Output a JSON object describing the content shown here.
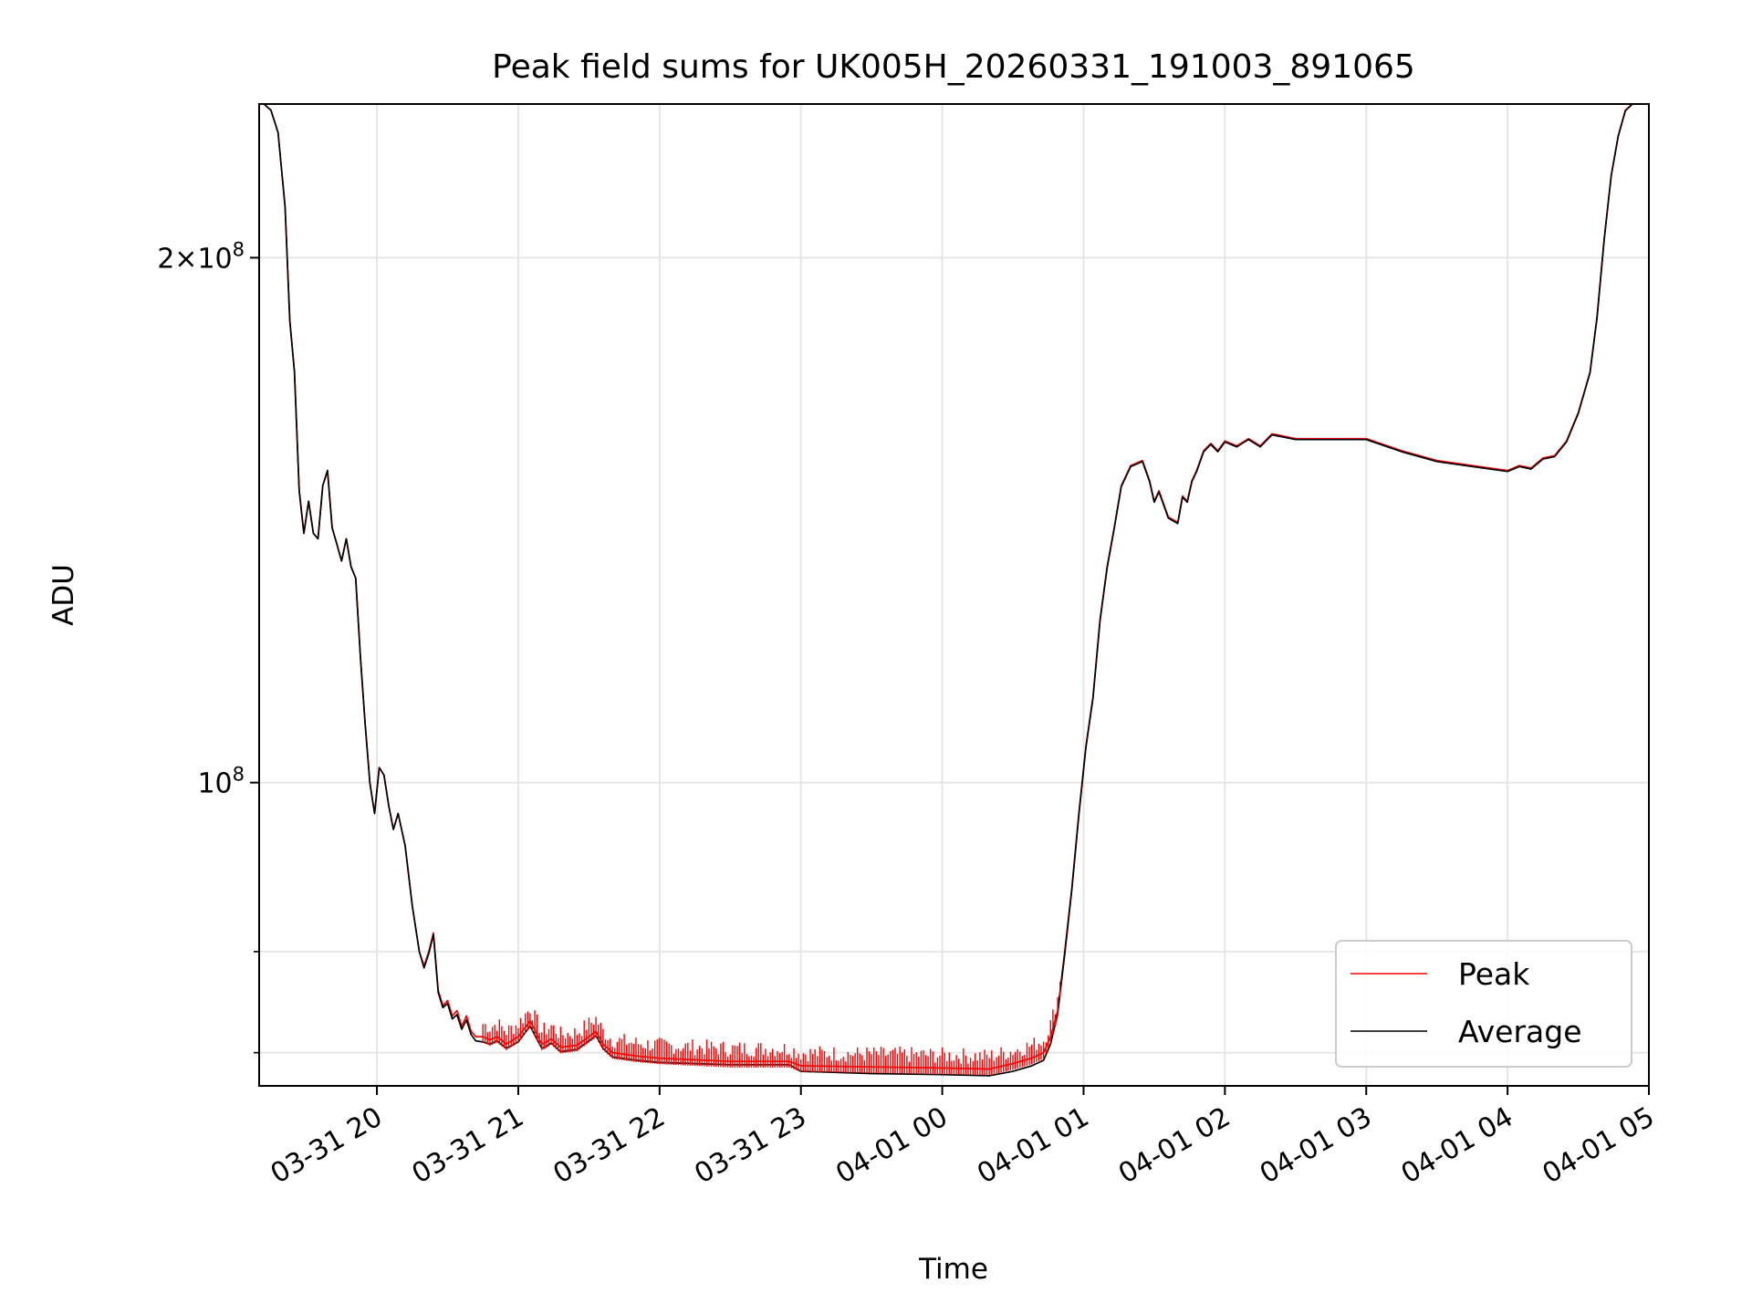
{
  "chart_data": {
    "type": "line",
    "title": "Peak field sums for UK005H_20260331_191003_891065",
    "xlabel": "Time",
    "ylabel": "ADU",
    "y_scale": "log",
    "grid": true,
    "legend_placement": "lower-right",
    "x_range": [
      "2026-03-31 19:10",
      "2026-04-01 05:00"
    ],
    "ylim": [
      67000000,
      245000000
    ],
    "x_ticks": [
      {
        "t": "2026-03-31 20:00",
        "label": "03-31 20"
      },
      {
        "t": "2026-03-31 21:00",
        "label": "03-31 21"
      },
      {
        "t": "2026-03-31 22:00",
        "label": "03-31 22"
      },
      {
        "t": "2026-03-31 23:00",
        "label": "03-31 23"
      },
      {
        "t": "2026-04-01 00:00",
        "label": "04-01 00"
      },
      {
        "t": "2026-04-01 01:00",
        "label": "04-01 01"
      },
      {
        "t": "2026-04-01 02:00",
        "label": "04-01 02"
      },
      {
        "t": "2026-04-01 03:00",
        "label": "04-01 03"
      },
      {
        "t": "2026-04-01 04:00",
        "label": "04-01 04"
      },
      {
        "t": "2026-04-01 05:00",
        "label": "04-01 05"
      }
    ],
    "y_ticks_major": [
      100000000,
      200000000
    ],
    "y_tick_label_mantissa": [
      "",
      "2"
    ],
    "y_tick_label_base": [
      "10",
      "10"
    ],
    "y_tick_label_exp": [
      "8",
      "8"
    ],
    "y_ticks_minor": [
      70000000,
      80000000
    ],
    "series": [
      {
        "name": "Peak",
        "color": "#ff0000",
        "noise_from": "2026-03-31 20:45",
        "noise_to": "2026-04-01 00:50",
        "x": [
          "2026-03-31 19:10",
          "2026-03-31 19:12",
          "2026-03-31 19:15",
          "2026-03-31 19:18",
          "2026-03-31 19:21",
          "2026-03-31 19:23",
          "2026-03-31 19:25",
          "2026-03-31 19:27",
          "2026-03-31 19:29",
          "2026-03-31 19:31",
          "2026-03-31 19:33",
          "2026-03-31 19:35",
          "2026-03-31 19:37",
          "2026-03-31 19:39",
          "2026-03-31 19:41",
          "2026-03-31 19:43",
          "2026-03-31 19:45",
          "2026-03-31 19:47",
          "2026-03-31 19:49",
          "2026-03-31 19:51",
          "2026-03-31 19:53",
          "2026-03-31 19:55",
          "2026-03-31 19:57",
          "2026-03-31 19:59",
          "2026-03-31 20:01",
          "2026-03-31 20:03",
          "2026-03-31 20:05",
          "2026-03-31 20:07",
          "2026-03-31 20:09",
          "2026-03-31 20:12",
          "2026-03-31 20:15",
          "2026-03-31 20:18",
          "2026-03-31 20:20",
          "2026-03-31 20:22",
          "2026-03-31 20:24",
          "2026-03-31 20:26",
          "2026-03-31 20:28",
          "2026-03-31 20:30",
          "2026-03-31 20:32",
          "2026-03-31 20:34",
          "2026-03-31 20:36",
          "2026-03-31 20:38",
          "2026-03-31 20:40",
          "2026-03-31 20:42",
          "2026-03-31 20:45",
          "2026-03-31 20:48",
          "2026-03-31 20:51",
          "2026-03-31 20:55",
          "2026-03-31 21:00",
          "2026-03-31 21:05",
          "2026-03-31 21:10",
          "2026-03-31 21:12",
          "2026-03-31 21:14",
          "2026-03-31 21:18",
          "2026-03-31 21:25",
          "2026-03-31 21:30",
          "2026-03-31 21:33",
          "2026-03-31 21:36",
          "2026-03-31 21:40",
          "2026-03-31 21:50",
          "2026-03-31 22:00",
          "2026-03-31 22:30",
          "2026-03-31 22:55",
          "2026-03-31 23:00",
          "2026-03-31 23:30",
          "2026-04-01 00:00",
          "2026-04-01 00:20",
          "2026-04-01 00:30",
          "2026-04-01 00:38",
          "2026-04-01 00:43",
          "2026-04-01 00:46",
          "2026-04-01 00:49",
          "2026-04-01 00:52",
          "2026-04-01 00:55",
          "2026-04-01 00:58",
          "2026-04-01 01:01",
          "2026-04-01 01:04",
          "2026-04-01 01:07",
          "2026-04-01 01:10",
          "2026-04-01 01:13",
          "2026-04-01 01:16",
          "2026-04-01 01:20",
          "2026-04-01 01:25",
          "2026-04-01 01:28",
          "2026-04-01 01:30",
          "2026-04-01 01:32",
          "2026-04-01 01:36",
          "2026-04-01 01:40",
          "2026-04-01 01:42",
          "2026-04-01 01:44",
          "2026-04-01 01:46",
          "2026-04-01 01:48",
          "2026-04-01 01:51",
          "2026-04-01 01:54",
          "2026-04-01 01:57",
          "2026-04-01 02:00",
          "2026-04-01 02:05",
          "2026-04-01 02:10",
          "2026-04-01 02:15",
          "2026-04-01 02:20",
          "2026-04-01 02:30",
          "2026-04-01 02:45",
          "2026-04-01 03:00",
          "2026-04-01 03:15",
          "2026-04-01 03:30",
          "2026-04-01 03:45",
          "2026-04-01 04:00",
          "2026-04-01 04:05",
          "2026-04-01 04:10",
          "2026-04-01 04:15",
          "2026-04-01 04:20",
          "2026-04-01 04:25",
          "2026-04-01 04:30",
          "2026-04-01 04:35",
          "2026-04-01 04:38",
          "2026-04-01 04:41",
          "2026-04-01 04:44",
          "2026-04-01 04:47",
          "2026-04-01 04:50",
          "2026-04-01 04:53",
          "2026-04-01 04:56",
          "2026-04-01 05:00"
        ],
        "y": [
          245000000,
          245000000,
          243000000,
          236000000,
          214000000,
          184000000,
          172000000,
          147000000,
          139000000,
          145000000,
          139000000,
          138000000,
          148000000,
          151000000,
          140000000,
          137000000,
          134000000,
          138000000,
          133000000,
          131000000,
          118000000,
          108000000,
          100000000,
          96000000,
          102000000,
          101000000,
          97000000,
          94000000,
          96000000,
          92000000,
          85000000,
          80000000,
          78500000,
          80000000,
          82000000,
          76000000,
          74500000,
          75000000,
          73500000,
          74000000,
          72500000,
          73500000,
          72000000,
          71500000,
          71500000,
          71200000,
          71500000,
          70800000,
          71500000,
          73000000,
          70800000,
          71000000,
          71300000,
          70500000,
          70700000,
          71500000,
          72000000,
          70800000,
          70000000,
          69700000,
          69500000,
          69200000,
          69200000,
          68800000,
          68700000,
          68600000,
          68500000,
          69000000,
          69500000,
          70000000,
          71500000,
          74000000,
          80000000,
          87000000,
          96000000,
          105000000,
          112000000,
          124000000,
          133000000,
          140000000,
          148000000,
          152000000,
          153000000,
          149000000,
          145000000,
          147000000,
          142000000,
          141000000,
          146000000,
          145000000,
          149000000,
          151000000,
          155000000,
          156500000,
          155000000,
          157000000,
          156000000,
          157500000,
          156000000,
          158500000,
          157500000,
          157500000,
          157500000,
          155000000,
          153000000,
          152000000,
          151000000,
          152000000,
          151500000,
          153500000,
          154000000,
          157000000,
          163000000,
          172000000,
          185000000,
          205000000,
          223000000,
          235000000,
          243000000,
          245000000,
          245000000,
          245000000
        ]
      },
      {
        "name": "Average",
        "color": "#000000",
        "x": [
          "2026-03-31 19:10",
          "2026-03-31 19:12",
          "2026-03-31 19:15",
          "2026-03-31 19:18",
          "2026-03-31 19:21",
          "2026-03-31 19:23",
          "2026-03-31 19:25",
          "2026-03-31 19:27",
          "2026-03-31 19:29",
          "2026-03-31 19:31",
          "2026-03-31 19:33",
          "2026-03-31 19:35",
          "2026-03-31 19:37",
          "2026-03-31 19:39",
          "2026-03-31 19:41",
          "2026-03-31 19:43",
          "2026-03-31 19:45",
          "2026-03-31 19:47",
          "2026-03-31 19:49",
          "2026-03-31 19:51",
          "2026-03-31 19:53",
          "2026-03-31 19:55",
          "2026-03-31 19:57",
          "2026-03-31 19:59",
          "2026-03-31 20:01",
          "2026-03-31 20:03",
          "2026-03-31 20:05",
          "2026-03-31 20:07",
          "2026-03-31 20:09",
          "2026-03-31 20:12",
          "2026-03-31 20:15",
          "2026-03-31 20:18",
          "2026-03-31 20:20",
          "2026-03-31 20:22",
          "2026-03-31 20:24",
          "2026-03-31 20:26",
          "2026-03-31 20:28",
          "2026-03-31 20:30",
          "2026-03-31 20:32",
          "2026-03-31 20:34",
          "2026-03-31 20:36",
          "2026-03-31 20:38",
          "2026-03-31 20:40",
          "2026-03-31 20:42",
          "2026-03-31 20:45",
          "2026-03-31 20:48",
          "2026-03-31 20:51",
          "2026-03-31 20:55",
          "2026-03-31 21:00",
          "2026-03-31 21:05",
          "2026-03-31 21:10",
          "2026-03-31 21:12",
          "2026-03-31 21:14",
          "2026-03-31 21:18",
          "2026-03-31 21:25",
          "2026-03-31 21:30",
          "2026-03-31 21:33",
          "2026-03-31 21:36",
          "2026-03-31 21:40",
          "2026-03-31 21:50",
          "2026-03-31 22:00",
          "2026-03-31 22:30",
          "2026-03-31 22:55",
          "2026-03-31 23:00",
          "2026-03-31 23:30",
          "2026-04-01 00:00",
          "2026-04-01 00:20",
          "2026-04-01 00:30",
          "2026-04-01 00:38",
          "2026-04-01 00:43",
          "2026-04-01 00:46",
          "2026-04-01 00:49",
          "2026-04-01 00:52",
          "2026-04-01 00:55",
          "2026-04-01 00:58",
          "2026-04-01 01:01",
          "2026-04-01 01:04",
          "2026-04-01 01:07",
          "2026-04-01 01:10",
          "2026-04-01 01:13",
          "2026-04-01 01:16",
          "2026-04-01 01:20",
          "2026-04-01 01:25",
          "2026-04-01 01:28",
          "2026-04-01 01:30",
          "2026-04-01 01:32",
          "2026-04-01 01:36",
          "2026-04-01 01:40",
          "2026-04-01 01:42",
          "2026-04-01 01:44",
          "2026-04-01 01:46",
          "2026-04-01 01:48",
          "2026-04-01 01:51",
          "2026-04-01 01:54",
          "2026-04-01 01:57",
          "2026-04-01 02:00",
          "2026-04-01 02:05",
          "2026-04-01 02:10",
          "2026-04-01 02:15",
          "2026-04-01 02:20",
          "2026-04-01 02:30",
          "2026-04-01 02:45",
          "2026-04-01 03:00",
          "2026-04-01 03:15",
          "2026-04-01 03:30",
          "2026-04-01 03:45",
          "2026-04-01 04:00",
          "2026-04-01 04:05",
          "2026-04-01 04:10",
          "2026-04-01 04:15",
          "2026-04-01 04:20",
          "2026-04-01 04:25",
          "2026-04-01 04:30",
          "2026-04-01 04:35",
          "2026-04-01 04:38",
          "2026-04-01 04:41",
          "2026-04-01 04:44",
          "2026-04-01 04:47",
          "2026-04-01 04:50",
          "2026-04-01 04:53",
          "2026-04-01 04:56",
          "2026-04-01 05:00"
        ],
        "y": [
          245000000,
          245000000,
          243000000,
          236000000,
          214000000,
          184000000,
          172000000,
          147000000,
          139000000,
          145000000,
          139000000,
          138000000,
          148000000,
          151000000,
          140000000,
          137000000,
          134000000,
          138000000,
          133000000,
          131000000,
          118000000,
          108000000,
          100000000,
          96000000,
          102000000,
          101000000,
          97000000,
          94000000,
          96000000,
          92000000,
          85000000,
          80000000,
          78300000,
          79800000,
          81800000,
          75800000,
          74300000,
          74700000,
          73200000,
          73600000,
          72200000,
          73100000,
          71700000,
          71100000,
          71000000,
          70800000,
          71100000,
          70400000,
          71000000,
          72500000,
          70400000,
          70600000,
          70900000,
          70100000,
          70300000,
          71100000,
          71600000,
          70400000,
          69600000,
          69300000,
          69100000,
          68900000,
          68900000,
          68300000,
          68100000,
          68000000,
          67900000,
          68300000,
          68800000,
          69300000,
          70800000,
          73700000,
          79700000,
          86800000,
          95800000,
          104800000,
          111800000,
          123800000,
          132800000,
          139800000,
          147800000,
          151800000,
          152800000,
          148800000,
          144800000,
          146800000,
          141800000,
          140800000,
          145800000,
          144800000,
          148800000,
          150800000,
          154800000,
          156300000,
          154800000,
          156800000,
          155800000,
          157300000,
          155800000,
          158300000,
          157300000,
          157300000,
          157300000,
          154800000,
          152800000,
          151800000,
          150800000,
          151800000,
          151300000,
          153300000,
          153800000,
          156800000,
          162800000,
          171800000,
          184800000,
          204800000,
          222800000,
          234800000,
          242800000,
          245000000,
          245000000,
          245000000
        ]
      }
    ]
  }
}
